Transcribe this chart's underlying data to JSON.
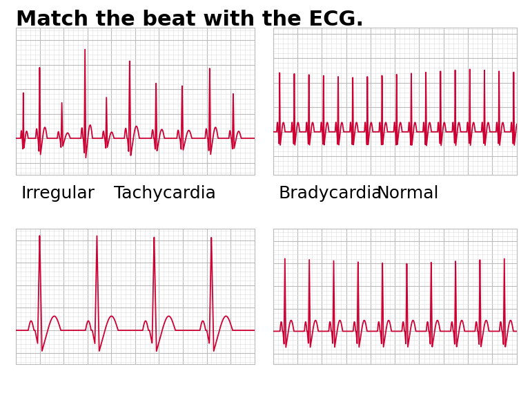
{
  "title": "Match the beat with the ECG.",
  "title_fontsize": 22,
  "title_fontweight": "bold",
  "background_color": "#ffffff",
  "ecg_color": "#cc0033",
  "grid_major_color": "#bbbbbb",
  "grid_minor_color": "#dddddd",
  "grid_bg_color": "#ffffff",
  "labels": {
    "top_left": "Irregular",
    "top_right": "Tachycardia",
    "bottom_left": "Bradycardia",
    "bottom_right": "Normal"
  },
  "label_fontsize": 18
}
